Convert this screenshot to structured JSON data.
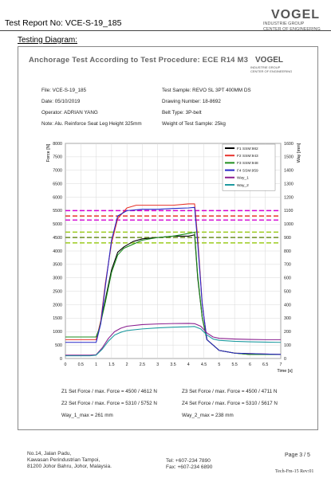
{
  "header": {
    "report_title": "Test Report No: VCE-S-19_185",
    "logo_name": "VOGEL",
    "logo_line1": "INDUSTRIE GROUP",
    "logo_line2": "CENTER OF ENGINEERING"
  },
  "section_label": "Testing Diagram:",
  "chart_header": {
    "title": "Anchorage Test According to Test Procedure: ECE R14 M3",
    "logo_name": "VOGEL",
    "logo_line1": "INDUSTRIE GROUP",
    "logo_line2": "CENTER OF ENGINEERING"
  },
  "info": {
    "file": "File: VCE-S-19_185",
    "date": "Date: 05/10/2019",
    "operator": "Operator: ADRIAN YANG",
    "note": "Note: Alu. Reinforce Seat Leg Height 325mm",
    "sample": "Test Sample: REVO SL 3PT 400MM DS",
    "drawing": "Drawing Number: 18-8692",
    "belt": "Belt Type: 3P-belt",
    "weight": "Weight of Test Sample: 25kg"
  },
  "chart_data": {
    "type": "line",
    "xlabel": "Time [s]",
    "ylabel": "Force [N]",
    "y2label": "Way [mm]",
    "xlim": [
      0,
      7
    ],
    "ylim": [
      0,
      8000
    ],
    "y2lim": [
      0,
      1600
    ],
    "x_ticks": [
      "0",
      "0.5",
      "1",
      "1.5",
      "2",
      "2.5",
      "3",
      "3.5",
      "4",
      "4.5",
      "5",
      "5.5",
      "6",
      "6.5",
      "7"
    ],
    "y_ticks": [
      "0",
      "500",
      "1000",
      "1500",
      "2000",
      "2500",
      "3000",
      "3500",
      "4000",
      "4500",
      "5000",
      "5500",
      "6000",
      "6500",
      "7000",
      "7500",
      "8000"
    ],
    "y2_ticks": [
      "0",
      "100",
      "200",
      "300",
      "400",
      "500",
      "600",
      "700",
      "800",
      "900",
      "1000",
      "1100",
      "1200",
      "1300",
      "1400",
      "1500",
      "1600"
    ],
    "grid": true,
    "legend_position": "top-right",
    "reference_lines": [
      {
        "color": "#d400d4",
        "values": [
          5500,
          5150
        ]
      },
      {
        "color": "#e8342c",
        "values": [
          5300
        ]
      },
      {
        "color": "#9ccc1e",
        "values": [
          4700,
          4300
        ]
      },
      {
        "color": "#6b8e23",
        "values": [
          4500
        ]
      }
    ],
    "series": [
      {
        "name": "F1 SSM:982",
        "color": "#000000",
        "axis": "left",
        "x": [
          0,
          1,
          1.1,
          1.3,
          1.5,
          1.7,
          1.9,
          2.2,
          2.5,
          3,
          3.5,
          4,
          4.2,
          4.3,
          4.45,
          4.6,
          5,
          5.5,
          6,
          7
        ],
        "y": [
          800,
          800,
          1100,
          2200,
          3300,
          3950,
          4150,
          4350,
          4450,
          4500,
          4550,
          4550,
          4600,
          3000,
          1500,
          700,
          300,
          200,
          150,
          150
        ]
      },
      {
        "name": "F2 SSM:943",
        "color": "#e8342c",
        "axis": "left",
        "x": [
          0,
          1,
          1.15,
          1.3,
          1.5,
          1.7,
          2,
          2.3,
          3,
          3.5,
          4,
          4.2,
          4.3,
          4.45,
          4.6,
          5,
          5.5,
          7
        ],
        "y": [
          700,
          700,
          1400,
          2800,
          4300,
          5200,
          5600,
          5700,
          5700,
          5700,
          5750,
          5750,
          4500,
          2000,
          700,
          300,
          200,
          150
        ]
      },
      {
        "name": "F3 SSM:948",
        "color": "#1e8e1e",
        "axis": "left",
        "x": [
          0,
          1,
          1.1,
          1.3,
          1.5,
          1.7,
          1.9,
          2.2,
          2.5,
          3,
          3.5,
          4,
          4.2,
          4.3,
          4.45,
          4.6,
          5,
          5.5,
          6,
          7
        ],
        "y": [
          800,
          800,
          1100,
          2100,
          3200,
          3850,
          4100,
          4250,
          4400,
          4500,
          4550,
          4650,
          4700,
          3100,
          1500,
          700,
          300,
          200,
          150,
          150
        ]
      },
      {
        "name": "F4 SSM:959",
        "color": "#2828c8",
        "axis": "left",
        "x": [
          0,
          1,
          1.15,
          1.3,
          1.5,
          1.7,
          2,
          2.5,
          3,
          3.5,
          4,
          4.2,
          4.3,
          4.45,
          4.6,
          5,
          5.5,
          7
        ],
        "y": [
          600,
          600,
          1300,
          2700,
          4400,
          5300,
          5500,
          5550,
          5550,
          5580,
          5600,
          5620,
          4300,
          2000,
          700,
          300,
          200,
          150
        ]
      },
      {
        "name": "Way_1",
        "color": "#8b2090",
        "axis": "right",
        "x": [
          0,
          0.8,
          1,
          1.2,
          1.4,
          1.6,
          1.8,
          2,
          2.5,
          3,
          3.5,
          4,
          4.2,
          4.4,
          4.6,
          4.8,
          5,
          5.5,
          6,
          6.5,
          7
        ],
        "y": [
          25,
          25,
          28,
          80,
          150,
          200,
          225,
          240,
          252,
          257,
          260,
          261,
          259,
          240,
          190,
          160,
          150,
          145,
          142,
          140,
          140
        ]
      },
      {
        "name": "Way_2",
        "color": "#1e9aa0",
        "axis": "right",
        "x": [
          0,
          0.8,
          1,
          1.2,
          1.4,
          1.6,
          1.8,
          2,
          2.5,
          3,
          3.5,
          4,
          4.2,
          4.4,
          4.6,
          4.8,
          5,
          5.5,
          6,
          6.5,
          7
        ],
        "y": [
          20,
          20,
          25,
          70,
          130,
          175,
          195,
          208,
          220,
          228,
          233,
          236,
          238,
          220,
          175,
          145,
          135,
          128,
          124,
          122,
          120
        ]
      }
    ]
  },
  "summary": {
    "z1": "Z1 Set Force / max. Force =  4500 /  4612  N",
    "z3": "Z3 Set Force / max. Force =  4500 /  4711  N",
    "z2": "Z2 Set Force / max. Force =  5310 /  5752  N",
    "z4": "Z4 Set Force / max. Force =  5310 /  5617  N",
    "way1": "Way_1_max =  261  mm",
    "way2": "Way_2_max =  238  mm"
  },
  "footer": {
    "address_1": "No.14, Jalan Padu,",
    "address_2": "Kawasan Perindustrian Tampoi,",
    "address_3": "81200 Johor Bahru, Johor, Malaysia.",
    "tel": "Tel: +607-234 7890",
    "fax": "Fax: +607-234 6890",
    "page": "Page 3 / 5",
    "form_code": "Tech-Fm-15 Rev:01"
  }
}
